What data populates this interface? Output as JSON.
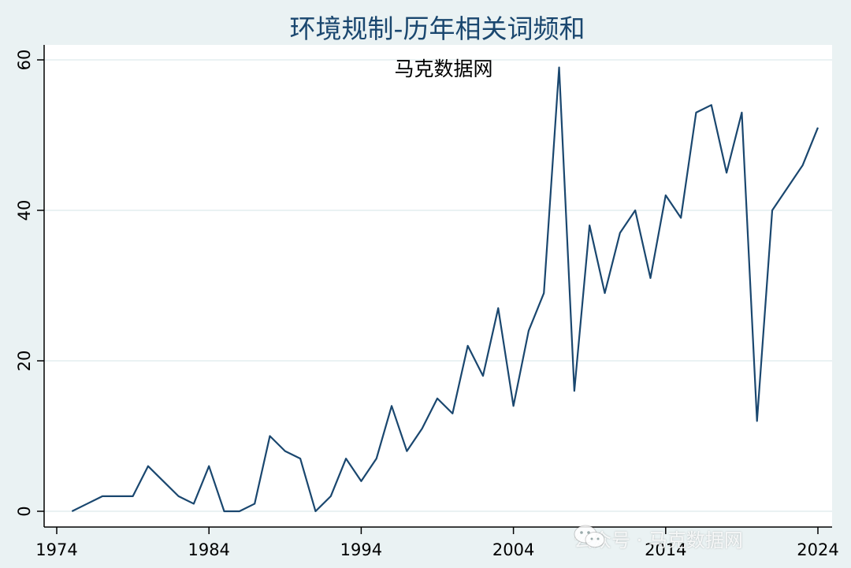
{
  "colors": {
    "background": "#eaf2f3",
    "plot_background": "#ffffff",
    "grid": "#eaf2f3",
    "line": "#1a476f",
    "title": "#1a476f"
  },
  "watermark_text": "公众号 · 马克数据网",
  "chart_data": {
    "type": "line",
    "title": "环境规制-历年相关词频和",
    "annotation": "马克数据网",
    "xlabel": "",
    "ylabel": "",
    "xlim": [
      1974,
      2024
    ],
    "ylim": [
      0,
      60
    ],
    "x_ticks": [
      1974,
      1984,
      1994,
      2004,
      2014,
      2024
    ],
    "y_ticks": [
      0,
      20,
      40,
      60
    ],
    "grid": true,
    "series": [
      {
        "x": [
          1975,
          1976,
          1977,
          1978,
          1979,
          1980,
          1981,
          1982,
          1983,
          1984,
          1985,
          1986,
          1987,
          1988,
          1989,
          1990,
          1991,
          1992,
          1993,
          1994,
          1995,
          1996,
          1997,
          1998,
          1999,
          2000,
          2001,
          2002,
          2003,
          2004,
          2005,
          2006,
          2007,
          2008,
          2009,
          2010,
          2011,
          2012,
          2013,
          2014,
          2015,
          2016,
          2017,
          2018,
          2019,
          2020,
          2021,
          2022,
          2023,
          2024
        ],
        "values": [
          0,
          1,
          2,
          2,
          2,
          6,
          4,
          2,
          1,
          6,
          0,
          0,
          1,
          10,
          8,
          7,
          0,
          2,
          7,
          4,
          7,
          14,
          8,
          11,
          15,
          13,
          22,
          18,
          27,
          14,
          24,
          29,
          59,
          16,
          38,
          29,
          37,
          40,
          31,
          42,
          39,
          53,
          54,
          45,
          53,
          12,
          40,
          43,
          46,
          51
        ]
      }
    ]
  }
}
